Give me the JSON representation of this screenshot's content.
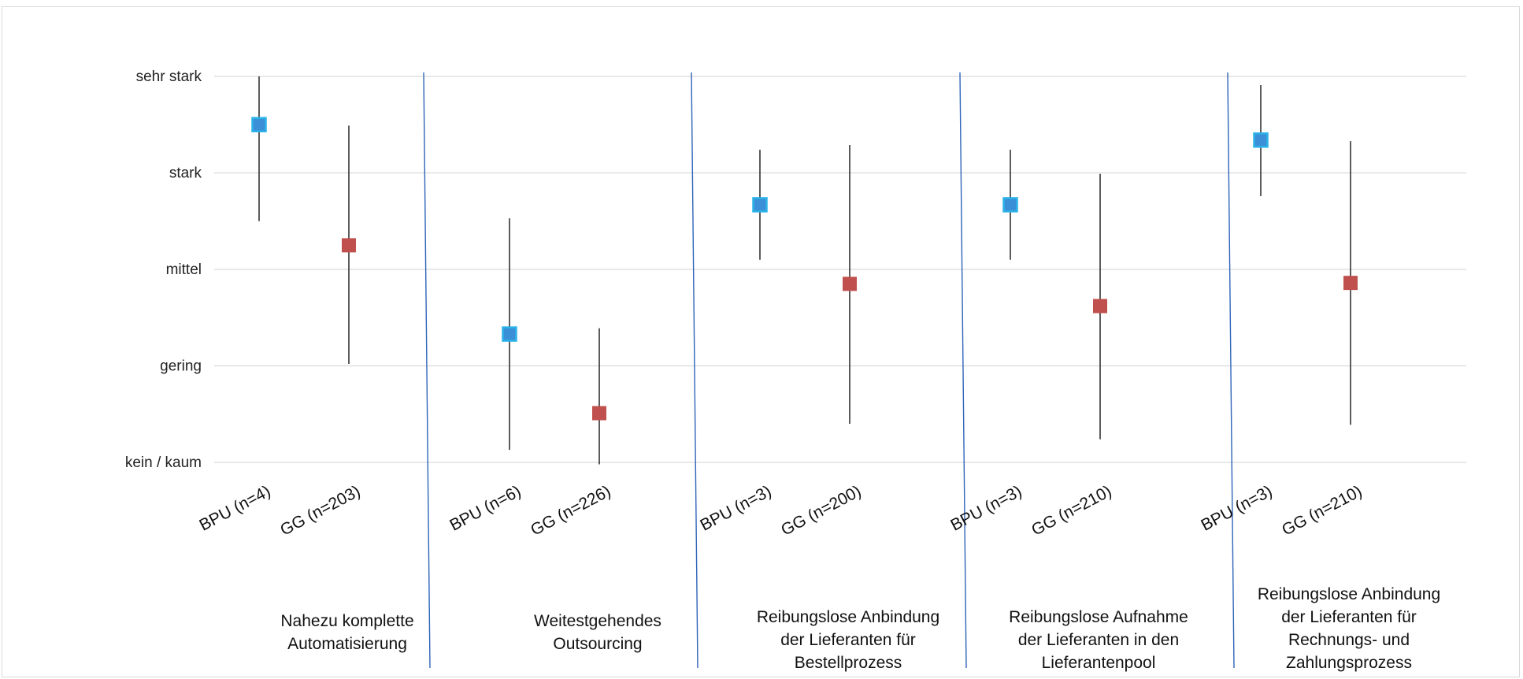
{
  "chart_data": {
    "type": "scatter",
    "y_categories": [
      "kein / kaum",
      "gering",
      "mittel",
      "stark",
      "sehr stark"
    ],
    "ylim": [
      1,
      5
    ],
    "grid": true,
    "groups": [
      {
        "label": [
          "Nahezu komplette",
          "Automatisierung"
        ],
        "points": [
          {
            "label": "BPU (n=4)",
            "series": "BPU",
            "value": 4.5,
            "low": 3.5,
            "high": 5.0
          },
          {
            "label": "GG (n=203)",
            "series": "GG",
            "value": 3.25,
            "low": 2.02,
            "high": 4.49
          }
        ]
      },
      {
        "label": [
          "Weitestgehendes",
          "Outsourcing"
        ],
        "points": [
          {
            "label": "BPU (n=6)",
            "series": "BPU",
            "value": 2.33,
            "low": 1.13,
            "high": 3.53
          },
          {
            "label": "GG (n=226)",
            "series": "GG",
            "value": 1.51,
            "low": 0.98,
            "high": 2.39
          }
        ]
      },
      {
        "label": [
          "Reibungslose Anbindung",
          "der Lieferanten für",
          "Bestellprozess"
        ],
        "points": [
          {
            "label": "BPU (n=3)",
            "series": "BPU",
            "value": 3.67,
            "low": 3.1,
            "high": 4.24
          },
          {
            "label": "GG (n=200)",
            "series": "GG",
            "value": 2.85,
            "low": 1.4,
            "high": 4.29
          }
        ]
      },
      {
        "label": [
          "Reibungslose Aufnahme",
          "der Lieferanten in den",
          "Lieferantenpool"
        ],
        "points": [
          {
            "label": "BPU (n=3)",
            "series": "BPU",
            "value": 3.67,
            "low": 3.1,
            "high": 4.24
          },
          {
            "label": "GG (n=210)",
            "series": "GG",
            "value": 2.62,
            "low": 1.24,
            "high": 3.99
          }
        ]
      },
      {
        "label": [
          "Reibungslose Anbindung",
          "der Lieferanten für",
          "Rechnungs- und",
          "Zahlungsprozess"
        ],
        "points": [
          {
            "label": "BPU (n=3)",
            "series": "BPU",
            "value": 4.34,
            "low": 3.76,
            "high": 4.91
          },
          {
            "label": "GG (n=210)",
            "series": "GG",
            "value": 2.86,
            "low": 1.39,
            "high": 4.33
          }
        ]
      }
    ],
    "colors": {
      "BPU": "#3b8fd6",
      "BPU_edge": "#2bb3e8",
      "GG": "#c0504d",
      "whisker": "#333333",
      "grid": "#d9d9d9",
      "divider": "#2f64b8"
    }
  }
}
